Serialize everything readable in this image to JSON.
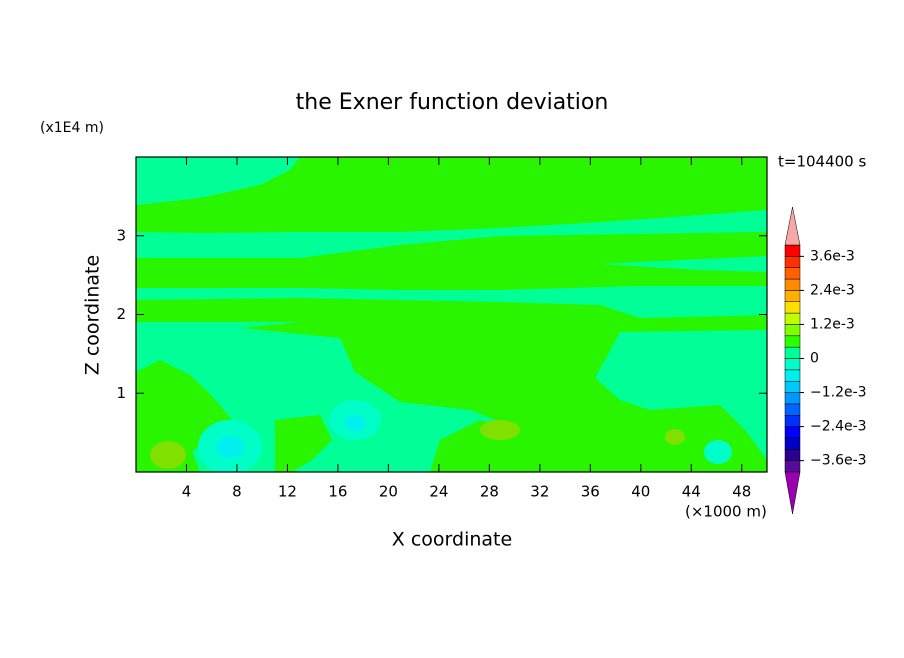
{
  "chart_data": {
    "type": "contour",
    "title": "the Exner function deviation",
    "x_label": "X coordinate",
    "y_label": "Z coordinate",
    "x_unit": "(×1000 m)",
    "y_unit": "(x1E4 m)",
    "time_label": "t=104400 s",
    "xlim": [
      0,
      50
    ],
    "ylim": [
      0,
      4
    ],
    "xticks": [
      4,
      8,
      12,
      16,
      20,
      24,
      28,
      32,
      36,
      40,
      44,
      48
    ],
    "yticks": [
      1,
      2,
      3
    ],
    "colorbar": {
      "clim": [
        -0.004,
        0.004
      ],
      "ticks": [
        {
          "value": 0.0036,
          "label": "3.6e-3"
        },
        {
          "value": 0.0024,
          "label": "2.4e-3"
        },
        {
          "value": 0.0012,
          "label": "1.2e-3"
        },
        0,
        {
          "value": -0.0012,
          "label": "−1.2e-3"
        },
        {
          "value": -0.0024,
          "label": "−2.4e-3"
        },
        {
          "value": -0.0036,
          "label": "−3.6e-3"
        }
      ],
      "colors": [
        "#5a0a9a",
        "#2a0090",
        "#0000c8",
        "#0000ff",
        "#0030ff",
        "#0064ff",
        "#0098ff",
        "#00c8ff",
        "#00f0f0",
        "#00ffc8",
        "#00ff96",
        "#2aff00",
        "#80ff00",
        "#c0ff00",
        "#ffe000",
        "#ffb000",
        "#ff8c00",
        "#ff6000",
        "#ff3000",
        "#ff0000"
      ],
      "under_color": "#9a00b0",
      "over_color": "#f4a8a8"
    }
  }
}
